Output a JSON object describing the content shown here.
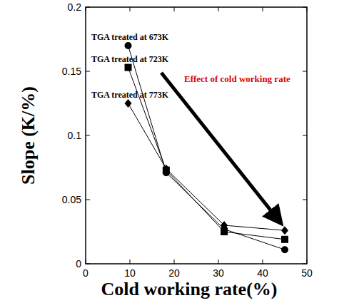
{
  "chart_data": {
    "type": "line",
    "x_label": "Cold working rate(%)",
    "y_label": "Slope (K/%)",
    "annotation": "Effect of cold working rate",
    "x": [
      9.6,
      18.2,
      31.3,
      45.0
    ],
    "series": [
      {
        "name": "TGA treated at 673K",
        "color": "#000000",
        "marker": "circle",
        "values": [
          0.17,
          0.071,
          0.027,
          0.011
        ]
      },
      {
        "name": "TGA treated at 723K",
        "color": "#000000",
        "marker": "square",
        "values": [
          0.153,
          0.073,
          0.025,
          0.019
        ]
      },
      {
        "name": "TGA treated at 773K",
        "color": "#000000",
        "marker": "diamond",
        "values": [
          0.125,
          0.074,
          0.03,
          0.026
        ]
      }
    ],
    "xlim": [
      0,
      50
    ],
    "xticks": [
      0,
      10,
      20,
      30,
      40,
      50
    ],
    "ylim": [
      0,
      0.2
    ],
    "yticks": [
      0,
      0.05,
      0.1,
      0.15,
      0.2
    ],
    "grid": false
  }
}
